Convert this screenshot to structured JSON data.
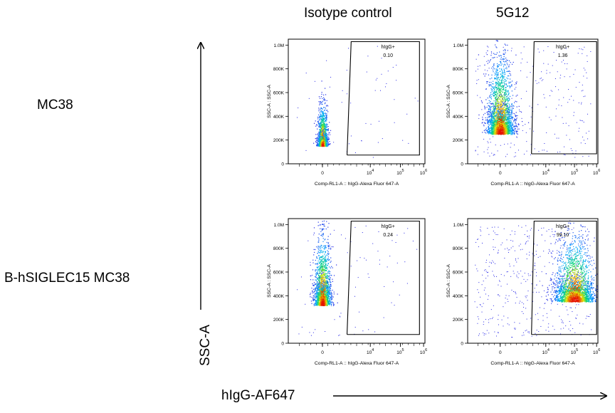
{
  "columns": [
    "Isotype control",
    "5G12"
  ],
  "rows": [
    "MC38",
    "B-hSIGLEC15 MC38"
  ],
  "figure_axes": {
    "y_label": "SSC-A",
    "x_label": "hIgG-AF647"
  },
  "chart_data": [
    {
      "type": "scatter",
      "row": "MC38",
      "column": "Isotype control",
      "xlabel": "Comp-RL1-A :: hIgG-Alexa Fluor  647-A",
      "ylabel": "SSC-A : SSC-A",
      "y_ticks": [
        "0",
        "200K",
        "400K",
        "600K",
        "800K",
        "1.0M"
      ],
      "x_ticks": [
        "0",
        "10^4",
        "10^5",
        "10^6"
      ],
      "ylim": [
        0,
        1050000
      ],
      "x_scale": "biexponential",
      "gate": {
        "name": "hIgG+",
        "percent": "0.10"
      },
      "population_center": {
        "x": "0",
        "y": 150000
      }
    },
    {
      "type": "scatter",
      "row": "MC38",
      "column": "5G12",
      "xlabel": "Comp-RL1-A :: hIgG-Alexa Fluor  647-A",
      "ylabel": "SSC-A : SSC-A",
      "y_ticks": [
        "0",
        "200K",
        "400K",
        "600K",
        "800K",
        "1.0M"
      ],
      "x_ticks": [
        "0",
        "10^4",
        "10^5",
        "10^6"
      ],
      "ylim": [
        0,
        1050000
      ],
      "x_scale": "biexponential",
      "gate": {
        "name": "hIgG+",
        "percent": "1.36"
      },
      "population_center": {
        "x": "0",
        "y": 250000
      }
    },
    {
      "type": "scatter",
      "row": "B-hSIGLEC15 MC38",
      "column": "Isotype control",
      "xlabel": "Comp-RL1-A :: hIgG-Alexa Fluor  647-A",
      "ylabel": "SSC-A : SSC-A",
      "y_ticks": [
        "0",
        "200K",
        "400K",
        "600K",
        "800K",
        "1.0M"
      ],
      "x_ticks": [
        "0",
        "10^4",
        "10^5",
        "10^6"
      ],
      "ylim": [
        0,
        1050000
      ],
      "x_scale": "biexponential",
      "gate": {
        "name": "hIgG+",
        "percent": "0.24"
      },
      "population_center": {
        "x": "0",
        "y": 320000
      }
    },
    {
      "type": "scatter",
      "row": "B-hSIGLEC15 MC38",
      "column": "5G12",
      "xlabel": "Comp-RL1-A :: hIgG-Alexa Fluor  647-A",
      "ylabel": "SSC-A : SSC-A",
      "y_ticks": [
        "0",
        "200K",
        "400K",
        "600K",
        "800K",
        "1.0M"
      ],
      "x_ticks": [
        "0",
        "10^4",
        "10^5",
        "10^6"
      ],
      "ylim": [
        0,
        1050000
      ],
      "x_scale": "biexponential",
      "gate": {
        "name": "hIgG+",
        "percent": "99.10"
      },
      "population_center": {
        "x": "10^5",
        "y": 350000
      }
    }
  ]
}
